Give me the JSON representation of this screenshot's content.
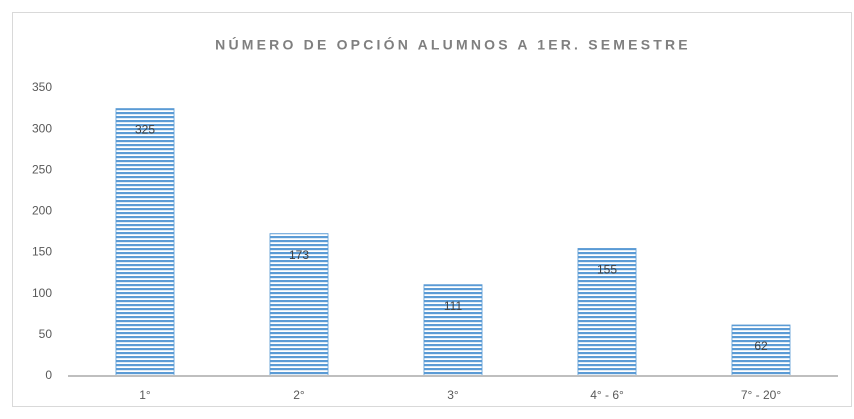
{
  "chart_data": {
    "type": "bar",
    "title": "NÚMERO DE OPCIÓN ALUMNOS A 1ER. SEMESTRE",
    "categories": [
      "1°",
      "2°",
      "3°",
      "4° - 6°",
      "7° - 20°"
    ],
    "values": [
      325,
      173,
      111,
      155,
      62
    ],
    "color": "#5b9bd5",
    "ylim": [
      0,
      350
    ],
    "yticks": [
      0,
      50,
      100,
      150,
      200,
      250,
      300,
      350
    ],
    "grid": false
  }
}
